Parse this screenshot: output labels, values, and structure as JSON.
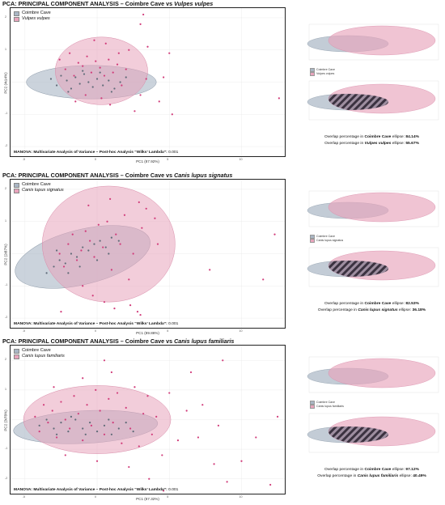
{
  "colors": {
    "cave": "#a9b6c4",
    "species": "#e8a4bc",
    "point_cave": "#5f6b78",
    "point_species": "#d13c7a"
  },
  "panels": [
    {
      "title_prefix": "PCA: PRINCIPAL COMPONENT ANALYSIS – Coimbre Cave vs ",
      "species": "Vulpes vulpes",
      "legend": {
        "cave": "Coimbre Cave",
        "species": "Vulpes vulpes"
      },
      "manova_label": "MANOVA: Multivariate Analysis of Variance – Post-hoc Analysis “Wilks’ Lambda”:",
      "manova_value": "0.001",
      "xlabel": "PC1 (87.92%)",
      "ylabel": "PC2 (4.14%)",
      "overlap_cave_prefix": "Overlap percentage in ",
      "overlap_cave_name": "Coimbre Cave",
      "overlap_cave_mid": " ellipse: ",
      "overlap_cave_value": "84.14%",
      "overlap_species_prefix": "Overlap percentage in ",
      "overlap_species_name": "Vulpes vulpes",
      "overlap_species_mid": " ellipse: ",
      "overlap_species_value": "55.67%"
    },
    {
      "title_prefix": "PCA: PRINCIPAL COMPONENT ANALYSIS – Coimbre Cave vs ",
      "species": "Canis lupus signatus",
      "legend": {
        "cave": "Coimbre Cave",
        "species": "Canis lupus signatus"
      },
      "manova_label": "MANOVA: Multivariate Analysis of Variance – Post-hoc Analysis “Wilks’ Lambda”:",
      "manova_value": "0.001",
      "xlabel": "PC1 (89.86%)",
      "ylabel": "PC2 (2.87%)",
      "overlap_cave_prefix": "Overlap percentage in ",
      "overlap_cave_name": "Coimbre Cave",
      "overlap_cave_mid": " ellipse: ",
      "overlap_cave_value": "82.53%",
      "overlap_species_prefix": "Overlap percentage in ",
      "overlap_species_name": "Canis lupus signatus",
      "overlap_species_mid": " ellipse: ",
      "overlap_species_value": "36.18%"
    },
    {
      "title_prefix": "PCA: PRINCIPAL COMPONENT ANALYSIS – Coimbre Cave vs ",
      "species": "Canis lupus familiaris",
      "legend": {
        "cave": "Coimbre Cave",
        "species": "Canis lupus familiaris"
      },
      "manova_label": "MANOVA: Multivariate Analysis of Variance – Post-hoc Analysis “Wilks’ Lambda”:",
      "manova_value": "0.001",
      "xlabel": "PC1 (87.32%)",
      "ylabel": "PC2 (3.78%)",
      "overlap_cave_prefix": "Overlap percentage in ",
      "overlap_cave_name": "Coimbre Cave",
      "overlap_cave_mid": " ellipse: ",
      "overlap_cave_value": "97.12%",
      "overlap_species_prefix": "Overlap percentage in ",
      "overlap_species_name": "Canis lupus familiaris",
      "overlap_species_mid": " ellipse: ",
      "overlap_species_value": "40.49%"
    }
  ],
  "chart_data": [
    {
      "type": "scatter",
      "title": "PCA: PRINCIPAL COMPONENT ANALYSIS – Coimbre Cave vs Vulpes vulpes",
      "xlabel": "PC1 (87.92%)",
      "ylabel": "PC2 (4.14%)",
      "xlim": [
        -6,
        13
      ],
      "ylim": [
        -2.3,
        2.3
      ],
      "xticks": [
        -5,
        0,
        5,
        10
      ],
      "yticks": [
        -2,
        -1,
        0,
        1,
        2
      ],
      "grid": true,
      "legend_position": "top-left",
      "series": [
        {
          "name": "Coimbre Cave",
          "ellipse": {
            "cx": -0.4,
            "cy": 0.0,
            "rx": 4.5,
            "ry": 0.52
          },
          "points": [
            [
              -3.2,
              0.1
            ],
            [
              -2.8,
              -0.1
            ],
            [
              -2.5,
              0.2
            ],
            [
              -2.1,
              0.05
            ],
            [
              -1.8,
              -0.2
            ],
            [
              -1.5,
              0.15
            ],
            [
              -1.2,
              -0.05
            ],
            [
              -0.9,
              0.25
            ],
            [
              -0.6,
              0.0
            ],
            [
              -0.3,
              -0.15
            ],
            [
              0.0,
              0.1
            ],
            [
              0.4,
              -0.1
            ],
            [
              0.8,
              0.05
            ],
            [
              1.2,
              -0.2
            ],
            [
              1.6,
              0.0
            ],
            [
              2.0,
              0.15
            ],
            [
              -2.0,
              -0.3
            ],
            [
              -1.0,
              0.35
            ],
            [
              0.2,
              0.3
            ],
            [
              1.0,
              -0.3
            ]
          ]
        },
        {
          "name": "Vulpes vulpes",
          "ellipse": {
            "cx": 0.3,
            "cy": 0.35,
            "rx": 3.2,
            "ry": 1.05
          },
          "points": [
            [
              -2.6,
              0.7
            ],
            [
              -2.2,
              0.4
            ],
            [
              -1.9,
              0.9
            ],
            [
              -1.6,
              0.2
            ],
            [
              -1.3,
              0.6
            ],
            [
              -1.0,
              0.5
            ],
            [
              -0.7,
              0.8
            ],
            [
              -0.4,
              0.3
            ],
            [
              -0.1,
              0.65
            ],
            [
              0.2,
              0.45
            ],
            [
              0.5,
              0.2
            ],
            [
              0.8,
              0.7
            ],
            [
              1.1,
              0.3
            ],
            [
              1.4,
              0.55
            ],
            [
              1.7,
              -0.1
            ],
            [
              2.0,
              0.4
            ],
            [
              -1.5,
              -0.6
            ],
            [
              -0.8,
              -0.4
            ],
            [
              0.3,
              -0.5
            ],
            [
              0.9,
              -0.7
            ],
            [
              1.5,
              0.9
            ],
            [
              2.2,
              1.0
            ],
            [
              3.0,
              -0.4
            ],
            [
              3.4,
              0.1
            ],
            [
              4.3,
              -0.6
            ],
            [
              4.6,
              0.15
            ],
            [
              5.2,
              -1.0
            ],
            [
              5.0,
              0.9
            ],
            [
              3.0,
              1.8
            ],
            [
              3.2,
              2.1
            ],
            [
              3.5,
              1.1
            ],
            [
              12.6,
              -0.5
            ],
            [
              2.6,
              -0.9
            ],
            [
              -0.2,
              1.3
            ],
            [
              0.6,
              1.2
            ]
          ]
        }
      ]
    },
    {
      "type": "scatter",
      "title": "PCA: PRINCIPAL COMPONENT ANALYSIS – Coimbre Cave vs Canis lupus signatus",
      "xlabel": "PC1 (89.86%)",
      "ylabel": "PC2 (2.87%)",
      "xlim": [
        -6,
        13
      ],
      "ylim": [
        -2.3,
        2.3
      ],
      "xticks": [
        -5,
        0,
        5,
        10
      ],
      "yticks": [
        -2,
        -1,
        0,
        1,
        2
      ],
      "grid": true,
      "legend_position": "top-left",
      "series": [
        {
          "name": "Coimbre Cave",
          "ellipse": {
            "cx": -1.0,
            "cy": -0.1,
            "rx": 4.8,
            "ry": 0.85,
            "rot": -14
          },
          "points": [
            [
              -3.5,
              -0.6
            ],
            [
              -3.0,
              -0.4
            ],
            [
              -2.6,
              -0.2
            ],
            [
              -2.2,
              -0.3
            ],
            [
              -1.8,
              0.0
            ],
            [
              -1.4,
              -0.1
            ],
            [
              -1.0,
              0.2
            ],
            [
              -0.6,
              0.1
            ],
            [
              -0.2,
              0.3
            ],
            [
              0.2,
              0.4
            ],
            [
              0.6,
              0.2
            ],
            [
              1.0,
              0.5
            ],
            [
              1.5,
              0.4
            ],
            [
              -2.0,
              -0.6
            ],
            [
              -1.2,
              -0.4
            ],
            [
              0.0,
              -0.2
            ],
            [
              0.8,
              0.0
            ],
            [
              -2.8,
              0.1
            ]
          ]
        },
        {
          "name": "Canis lupus signatus",
          "ellipse": {
            "cx": 0.8,
            "cy": 0.3,
            "rx": 4.6,
            "ry": 1.8
          },
          "points": [
            [
              -2.6,
              0.0
            ],
            [
              -2.3,
              -0.4
            ],
            [
              -2.0,
              0.3
            ],
            [
              -1.7,
              0.6
            ],
            [
              -1.4,
              -0.2
            ],
            [
              -1.1,
              0.1
            ],
            [
              -0.8,
              0.7
            ],
            [
              -0.5,
              0.4
            ],
            [
              -0.2,
              -0.1
            ],
            [
              0.1,
              0.9
            ],
            [
              0.4,
              0.2
            ],
            [
              0.7,
              1.0
            ],
            [
              1.0,
              -0.5
            ],
            [
              1.3,
              0.6
            ],
            [
              1.6,
              0.3
            ],
            [
              1.9,
              1.2
            ],
            [
              2.2,
              -0.8
            ],
            [
              2.5,
              0.0
            ],
            [
              -1.0,
              -1.0
            ],
            [
              -0.3,
              -1.3
            ],
            [
              0.5,
              -1.5
            ],
            [
              1.2,
              -1.7
            ],
            [
              2.3,
              -1.6
            ],
            [
              2.8,
              -1.8
            ],
            [
              3.1,
              0.8
            ],
            [
              3.4,
              1.4
            ],
            [
              4.0,
              1.1
            ],
            [
              4.2,
              0.3
            ],
            [
              -0.6,
              1.5
            ],
            [
              0.9,
              1.7
            ],
            [
              2.9,
              1.6
            ],
            [
              12.3,
              0.6
            ],
            [
              11.5,
              -0.8
            ],
            [
              7.8,
              -0.5
            ],
            [
              3.0,
              -1.9
            ],
            [
              -2.5,
              -1.8
            ]
          ]
        }
      ]
    },
    {
      "type": "scatter",
      "title": "PCA: PRINCIPAL COMPONENT ANALYSIS – Coimbre Cave vs Canis lupus familiaris",
      "xlabel": "PC1 (87.32%)",
      "ylabel": "PC2 (3.78%)",
      "xlim": [
        -6,
        13
      ],
      "ylim": [
        -2.5,
        2.5
      ],
      "xticks": [
        -5,
        0,
        5,
        10
      ],
      "yticks": [
        -2,
        -1,
        0,
        1,
        2
      ],
      "grid": true,
      "legend_position": "top-left",
      "series": [
        {
          "name": "Coimbre Cave",
          "ellipse": {
            "cx": -0.8,
            "cy": -0.25,
            "rx": 5.0,
            "ry": 0.55,
            "rot": -3
          },
          "points": [
            [
              -4.0,
              -0.2
            ],
            [
              -3.5,
              0.0
            ],
            [
              -3.0,
              -0.3
            ],
            [
              -2.5,
              -0.1
            ],
            [
              -2.0,
              -0.4
            ],
            [
              -1.5,
              0.0
            ],
            [
              -1.0,
              -0.3
            ],
            [
              -0.5,
              -0.1
            ],
            [
              0.0,
              -0.4
            ],
            [
              0.5,
              -0.2
            ],
            [
              1.0,
              -0.5
            ],
            [
              1.5,
              -0.3
            ],
            [
              2.0,
              -0.1
            ],
            [
              -2.8,
              -0.5
            ],
            [
              -1.8,
              0.1
            ],
            [
              -0.8,
              -0.5
            ],
            [
              0.8,
              0.0
            ],
            [
              2.5,
              -0.4
            ]
          ]
        },
        {
          "name": "Canis lupus familiaris",
          "ellipse": {
            "cx": 0.0,
            "cy": 0.0,
            "rx": 5.1,
            "ry": 1.15
          },
          "points": [
            [
              -4.3,
              0.1
            ],
            [
              -4.0,
              -0.4
            ],
            [
              -3.7,
              0.5
            ],
            [
              -3.4,
              -0.1
            ],
            [
              -3.1,
              0.3
            ],
            [
              -2.8,
              -0.6
            ],
            [
              -2.5,
              0.6
            ],
            [
              -2.2,
              0.0
            ],
            [
              -1.9,
              -0.3
            ],
            [
              -1.6,
              0.8
            ],
            [
              -1.3,
              0.2
            ],
            [
              -1.0,
              -0.7
            ],
            [
              -0.7,
              0.5
            ],
            [
              -0.4,
              -0.2
            ],
            [
              -0.1,
              1.0
            ],
            [
              0.2,
              0.3
            ],
            [
              0.5,
              -0.5
            ],
            [
              0.8,
              0.7
            ],
            [
              1.1,
              -0.1
            ],
            [
              1.4,
              0.9
            ],
            [
              1.7,
              -0.8
            ],
            [
              2.0,
              0.4
            ],
            [
              2.3,
              -0.3
            ],
            [
              2.6,
              1.1
            ],
            [
              2.9,
              -0.9
            ],
            [
              3.2,
              0.2
            ],
            [
              3.5,
              0.8
            ],
            [
              3.8,
              -0.5
            ],
            [
              4.1,
              0.1
            ],
            [
              -3.0,
              1.1
            ],
            [
              -1.0,
              1.4
            ],
            [
              1.0,
              1.6
            ],
            [
              0.5,
              2.0
            ],
            [
              -0.3,
              2.6
            ],
            [
              4.5,
              -1.2
            ],
            [
              5.0,
              0.9
            ],
            [
              5.6,
              -0.7
            ],
            [
              6.2,
              0.3
            ],
            [
              7.0,
              -0.6
            ],
            [
              7.3,
              0.5
            ],
            [
              8.1,
              -1.5
            ],
            [
              8.4,
              -0.2
            ],
            [
              9.0,
              -2.1
            ],
            [
              8.7,
              2.0
            ],
            [
              10.0,
              -1.4
            ],
            [
              11.0,
              -0.6
            ],
            [
              12.0,
              -2.2
            ],
            [
              11.6,
              -2.6
            ],
            [
              12.5,
              0.1
            ],
            [
              3.6,
              -2.0
            ],
            [
              4.6,
              -2.4
            ],
            [
              2.2,
              -1.6
            ],
            [
              6.5,
              1.6
            ],
            [
              -2.2,
              -1.2
            ],
            [
              0.0,
              -1.4
            ]
          ]
        }
      ]
    }
  ]
}
